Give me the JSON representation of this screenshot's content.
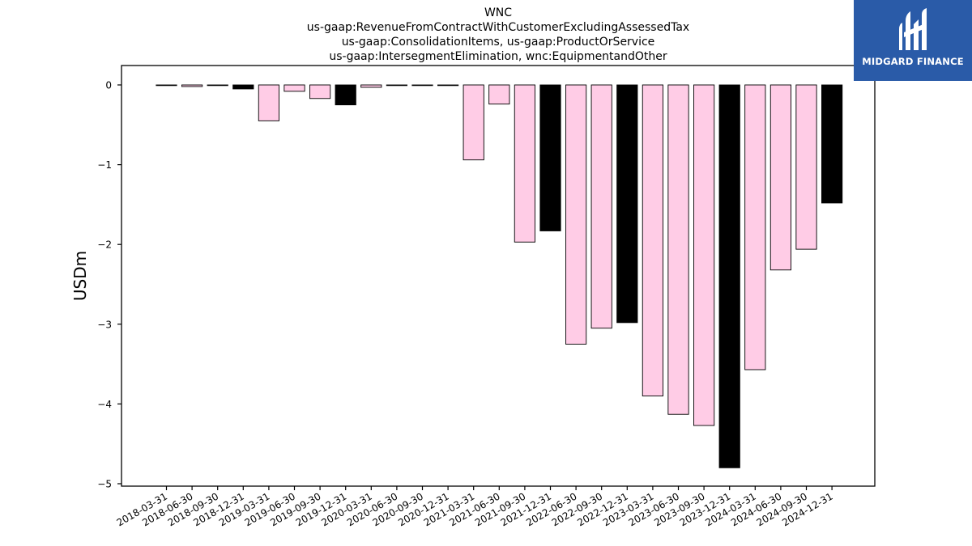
{
  "chart_data": {
    "type": "bar",
    "title_lines": [
      "WNC",
      "us-gaap:RevenueFromContractWithCustomerExcludingAssessedTax",
      "us-gaap:ConsolidationItems, us-gaap:ProductOrService",
      "us-gaap:IntersegmentElimination, wnc:EquipmentandOther"
    ],
    "ylabel": "USDm",
    "ylim": [
      -5,
      0.25
    ],
    "yticks": [
      0,
      -1,
      -2,
      -3,
      -4,
      -5
    ],
    "ytick_labels": [
      "0",
      "−1",
      "−2",
      "−3",
      "−4",
      "−5"
    ],
    "categories": [
      "2018-03-31",
      "2018-06-30",
      "2018-09-30",
      "2018-12-31",
      "2019-03-31",
      "2019-06-30",
      "2019-09-30",
      "2019-12-31",
      "2020-03-31",
      "2020-06-30",
      "2020-09-30",
      "2020-12-31",
      "2021-03-31",
      "2021-06-30",
      "2021-09-30",
      "2021-12-31",
      "2022-06-30",
      "2022-09-30",
      "2022-12-31",
      "2023-03-31",
      "2023-06-30",
      "2023-09-30",
      "2023-12-31",
      "2024-03-31",
      "2024-06-30",
      "2024-09-30",
      "2024-12-31"
    ],
    "values": [
      -0.005,
      -0.02,
      -0.005,
      -0.05,
      -0.45,
      -0.08,
      -0.17,
      -0.25,
      -0.03,
      -0.005,
      -0.005,
      -0.005,
      -0.94,
      -0.24,
      -1.97,
      -1.83,
      -3.25,
      -3.05,
      -2.98,
      -3.9,
      -4.13,
      -4.27,
      -4.8,
      -3.57,
      -2.32,
      -2.06,
      -1.48
    ],
    "bar_colors": [
      "#ffcce6",
      "#ffcce6",
      "#ffcce6",
      "#000000",
      "#ffcce6",
      "#ffcce6",
      "#ffcce6",
      "#000000",
      "#ffcce6",
      "#ffcce6",
      "#ffcce6",
      "#000000",
      "#ffcce6",
      "#ffcce6",
      "#ffcce6",
      "#000000",
      "#ffcce6",
      "#ffcce6",
      "#000000",
      "#ffcce6",
      "#ffcce6",
      "#ffcce6",
      "#000000",
      "#ffcce6",
      "#ffcce6",
      "#ffcce6",
      "#000000"
    ],
    "grid": false,
    "legend": "none"
  },
  "logo": {
    "text": "MIDGARD FINANCE",
    "background": "#2a5ba8"
  }
}
